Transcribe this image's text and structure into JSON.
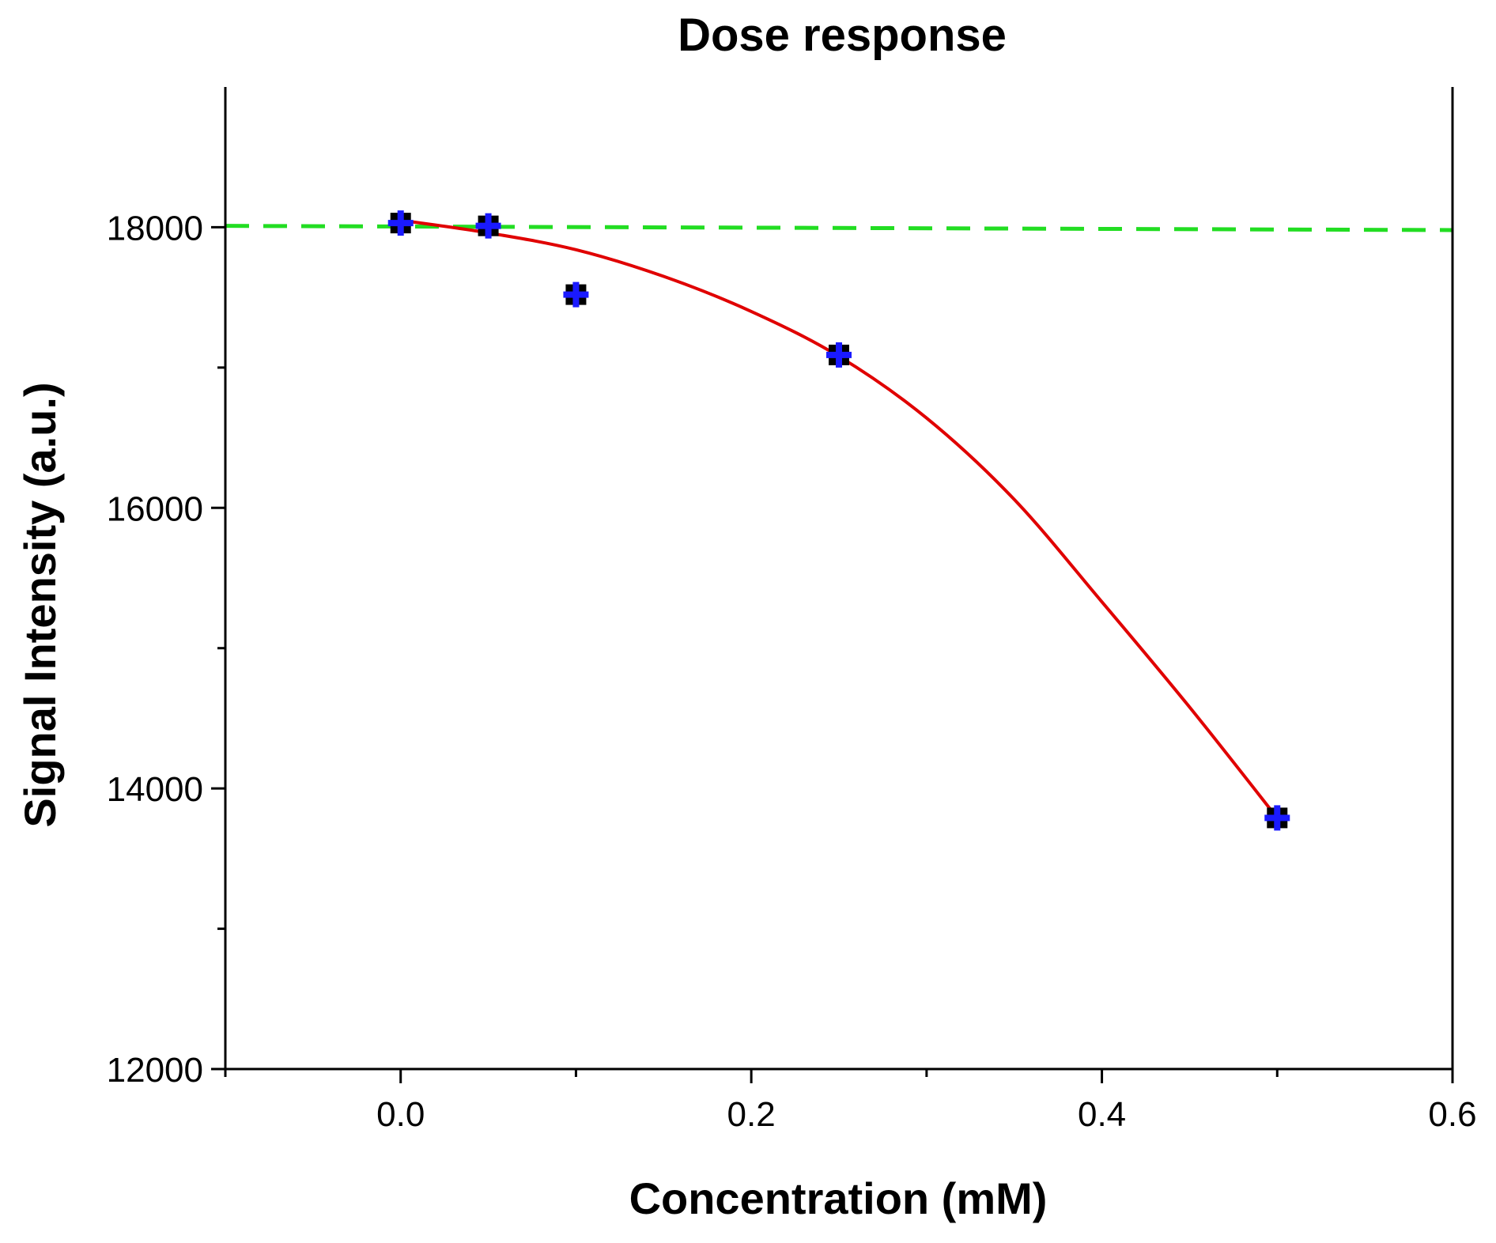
{
  "chart_data": {
    "type": "scatter",
    "title": "Dose response",
    "xlabel": "Concentration (mM)",
    "ylabel": "Signal Intensity (a.u.)",
    "xlim": [
      -0.1,
      0.6
    ],
    "ylim": [
      12000,
      19000
    ],
    "x_ticks": [
      0.0,
      0.2,
      0.4,
      0.6
    ],
    "x_tick_labels": [
      "0.0",
      "0.2",
      "0.4",
      "0.6"
    ],
    "x_minor_ticks": [
      -0.1,
      0.1,
      0.3,
      0.5
    ],
    "y_ticks": [
      12000,
      14000,
      16000,
      18000
    ],
    "y_tick_labels": [
      "12000",
      "14000",
      "16000",
      "18000"
    ],
    "y_minor_ticks": [
      13000,
      15000,
      17000
    ],
    "grid": false,
    "series": [
      {
        "kind": "points",
        "marker": "square",
        "color": "#000000",
        "accent_color": "#1a1aff",
        "x": [
          0.0,
          0.05,
          0.1,
          0.25,
          0.5
        ],
        "y": [
          18030,
          18010,
          17520,
          17090,
          13790
        ]
      },
      {
        "kind": "fit-line",
        "color": "#e00000",
        "x": [
          0.0,
          0.05,
          0.1,
          0.15,
          0.2,
          0.25,
          0.3,
          0.35,
          0.4,
          0.45,
          0.5
        ],
        "y": [
          18050,
          17960,
          17840,
          17650,
          17400,
          17080,
          16640,
          16060,
          15330,
          14580,
          13790
        ]
      },
      {
        "kind": "reference-line",
        "color": "#22dd22",
        "x": [
          -0.1,
          0.6
        ],
        "y": [
          18010,
          17980
        ]
      }
    ]
  }
}
